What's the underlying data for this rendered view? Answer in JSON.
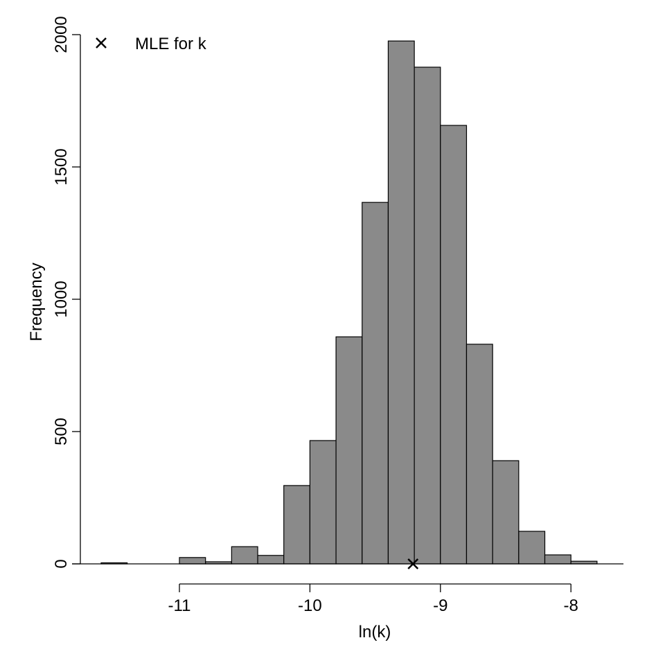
{
  "chart_data": {
    "type": "bar",
    "subtype": "histogram",
    "title": "",
    "xlabel": "ln(k)",
    "ylabel": "Frequency",
    "bin_edges": [
      -11.6,
      -11.4,
      -11.2,
      -11.0,
      -10.8,
      -10.6,
      -10.4,
      -10.2,
      -10.0,
      -9.8,
      -9.6,
      -9.4,
      -9.2,
      -9.0,
      -8.8,
      -8.6,
      -8.4,
      -8.2,
      -8.0,
      -7.8
    ],
    "values": [
      4,
      0,
      0,
      24,
      8,
      65,
      32,
      296,
      466,
      858,
      1366,
      1976,
      1877,
      1657,
      830,
      390,
      123,
      34,
      10
    ],
    "xlim": [
      -11.6,
      -7.8
    ],
    "ylim": [
      0,
      2000
    ],
    "xticks": [
      -11,
      -10,
      -9,
      -8
    ],
    "xtick_labels": [
      "-11",
      "-10",
      "-9",
      "-8"
    ],
    "yticks": [
      0,
      500,
      1000,
      1500,
      2000
    ],
    "ytick_labels": [
      "0",
      "500",
      "1000",
      "1500",
      "2000"
    ],
    "bar_color": "#8a8a8a",
    "grid": false,
    "markers": [
      {
        "label": "MLE for k",
        "x": -9.21,
        "y": 0,
        "symbol": "x"
      }
    ],
    "legend": {
      "placement": "top-left",
      "entries": [
        {
          "label": "MLE for k",
          "symbol": "x"
        }
      ]
    }
  }
}
